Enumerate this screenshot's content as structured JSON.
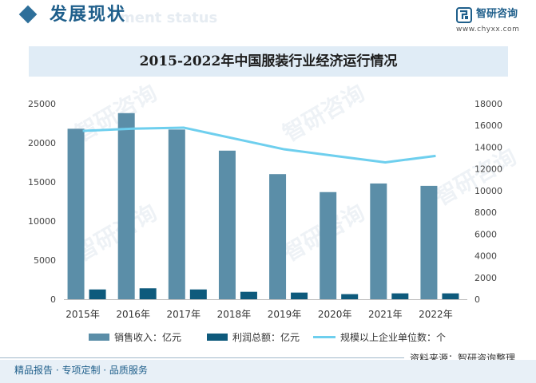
{
  "header": {
    "title": "发展现状",
    "title_bg": "ment status",
    "brand_name": "智研咨询",
    "brand_url": "www.chyxx.com"
  },
  "chart_data": {
    "type": "bar",
    "title": "2015-2022年中国服装行业经济运行情况",
    "categories": [
      "2015年",
      "2016年",
      "2017年",
      "2018年",
      "2019年",
      "2020年",
      "2021年",
      "2022年"
    ],
    "series": [
      {
        "name": "销售收入：亿元",
        "kind": "bar",
        "axis": "left",
        "color": "#5b8ea8",
        "values": [
          21800,
          23800,
          21700,
          19000,
          16000,
          13700,
          14800,
          14500
        ]
      },
      {
        "name": "利润总额：亿元",
        "kind": "bar",
        "axis": "left",
        "color": "#0e5a7c",
        "values": [
          1250,
          1400,
          1250,
          950,
          850,
          650,
          750,
          750
        ]
      },
      {
        "name": "规模以上企业单位数：个",
        "kind": "line",
        "axis": "right",
        "color": "#6ecfee",
        "values": [
          15500,
          15700,
          15800,
          14800,
          13800,
          13200,
          12600,
          13200
        ]
      }
    ],
    "y_left": {
      "ticks": [
        0,
        5000,
        10000,
        15000,
        20000,
        25000
      ],
      "tick_labels": [
        "0",
        "5000",
        "10000",
        "15000",
        "20000",
        "25000"
      ],
      "lim": [
        0,
        25000
      ]
    },
    "y_right": {
      "ticks": [
        0,
        2000,
        4000,
        6000,
        8000,
        10000,
        12000,
        14000,
        16000,
        18000
      ],
      "tick_labels": [
        "0",
        "2000",
        "4000",
        "6000",
        "8000",
        "10000",
        "12000",
        "14000",
        "16000",
        "18000"
      ],
      "lim": [
        0,
        18000
      ]
    },
    "legend_position": "bottom",
    "grid": false
  },
  "source": "资料来源：智研咨询整理",
  "footer": "精品报告 · 专项定制 · 品质服务",
  "watermark": "智研咨询"
}
